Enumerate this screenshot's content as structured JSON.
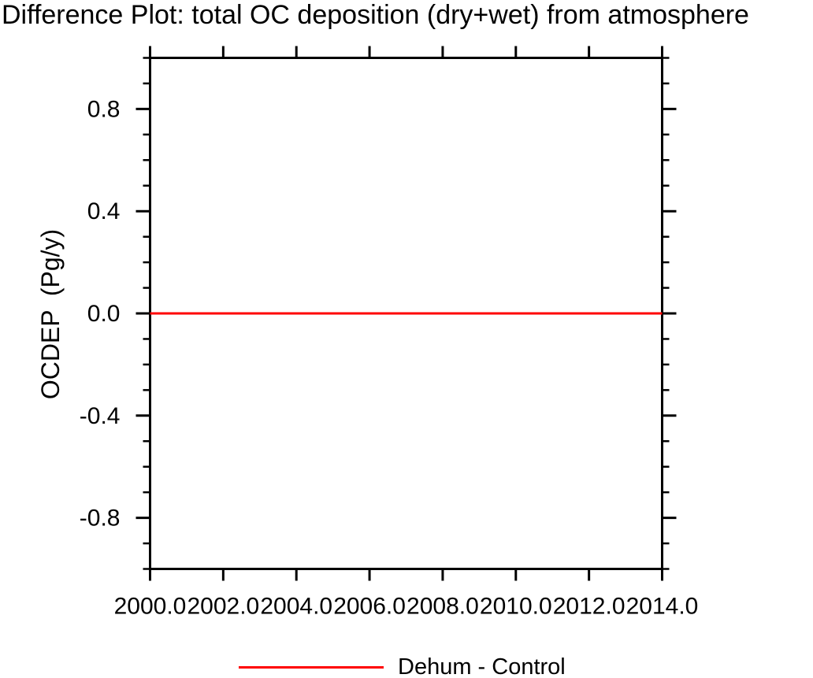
{
  "chart_data": {
    "type": "line",
    "title": "Difference Plot: total OC deposition (dry+wet) from atmosphere",
    "xlabel": "",
    "ylabel": "OCDEP  (Pg/y)",
    "xlim": [
      2000.0,
      2014.0
    ],
    "ylim": [
      -1.0,
      1.0
    ],
    "xticks": [
      2000.0,
      2002.0,
      2004.0,
      2006.0,
      2008.0,
      2010.0,
      2012.0,
      2014.0
    ],
    "xtick_labels": [
      "2000.0",
      "2002.0",
      "2004.0",
      "2006.0",
      "2008.0",
      "2010.0",
      "2012.0",
      "2014.0"
    ],
    "yticks_major": [
      0.8,
      0.4,
      0.0,
      -0.4,
      -0.8
    ],
    "ytick_labels": [
      "0.8",
      "0.4",
      "0.0",
      "-0.4",
      "-0.8"
    ],
    "y_minor_step": 0.1,
    "grid": false,
    "frame": "box-with-outward-ticks",
    "axis_color": "#000000",
    "series": [
      {
        "name": "Dehum - Control",
        "color": "#ff0000",
        "x": [
          2000.0,
          2014.0
        ],
        "values": [
          0.0,
          0.0
        ]
      }
    ],
    "legend": {
      "position": "bottom-center",
      "entries": [
        {
          "label": "Dehum - Control",
          "color": "#ff0000"
        }
      ]
    }
  }
}
